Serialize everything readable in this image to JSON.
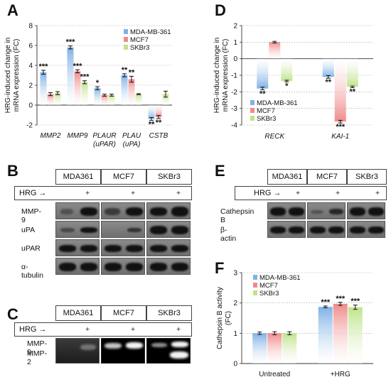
{
  "panels": {
    "A": "A",
    "B": "B",
    "C": "C",
    "D": "D",
    "E": "E",
    "F": "F"
  },
  "colors": {
    "blue": "#7fb1e6",
    "red": "#f08a8a",
    "green": "#bfe38a"
  },
  "chart_data": [
    {
      "id": "A",
      "type": "bar",
      "ylabel": "HRG-induced change in mRNA expression (FC)",
      "ylim": [
        -2,
        8
      ],
      "yticks": [
        -2,
        0,
        2,
        4,
        6,
        8
      ],
      "categories": [
        "MMP2",
        "MMP9",
        "PLAUR (uPAR)",
        "PLAU (uPA)",
        "CSTB"
      ],
      "category_lines": [
        [
          "MMP2"
        ],
        [
          "MMP9"
        ],
        [
          "PLAUR",
          "(uPAR)"
        ],
        [
          "PLAU",
          "(uPA)"
        ],
        [
          "CSTB"
        ]
      ],
      "series": [
        {
          "name": "MDA-MB-361",
          "values": [
            3.3,
            5.8,
            1.7,
            3.0,
            -1.4
          ],
          "errors": [
            0.2,
            0.15,
            0.15,
            0.15,
            0.15
          ],
          "sig": [
            "***",
            "***",
            "*",
            "**",
            "**"
          ]
        },
        {
          "name": "MCF7",
          "values": [
            1.1,
            3.4,
            1.0,
            2.6,
            -1.2
          ],
          "errors": [
            0.15,
            0.15,
            0.1,
            0.3,
            0.15
          ],
          "sig": [
            "",
            "***",
            "",
            "**",
            "**"
          ]
        },
        {
          "name": "SKBr3",
          "values": [
            1.2,
            2.3,
            1.0,
            1.1,
            1.1
          ],
          "errors": [
            0.15,
            0.15,
            0.1,
            0.05,
            0.3
          ],
          "sig": [
            "",
            "***",
            "",
            "",
            ""
          ]
        }
      ],
      "legend": "top-right",
      "grid": true
    },
    {
      "id": "D",
      "type": "bar",
      "ylabel": "HRG-induced change in mRNA expression (FC)",
      "ylim": [
        -4,
        2
      ],
      "yticks": [
        -4,
        -3,
        -2,
        -1,
        0,
        1,
        2
      ],
      "categories": [
        "RECK",
        "KAI-1"
      ],
      "category_lines": [
        [
          "RECK"
        ],
        [
          "KAI-1"
        ]
      ],
      "series": [
        {
          "name": "MDA-MB-361",
          "values": [
            -1.8,
            -1.1
          ],
          "errors": [
            0.08,
            0.08
          ],
          "sig": [
            "**",
            "**"
          ]
        },
        {
          "name": "MCF7",
          "values": [
            1.0,
            -3.8
          ],
          "errors": [
            0.05,
            0.08
          ],
          "sig": [
            "",
            "***"
          ]
        },
        {
          "name": "SKBr3",
          "values": [
            -1.35,
            -1.7
          ],
          "errors": [
            0.05,
            0.05
          ],
          "sig": [
            "*",
            "**"
          ]
        }
      ],
      "legend": "bottom-left",
      "grid": true
    },
    {
      "id": "F",
      "type": "bar",
      "ylabel": "Cathepsin B activity (FC)",
      "ylim": [
        0,
        3
      ],
      "yticks": [
        0,
        1,
        2,
        3
      ],
      "categories": [
        "Untreated",
        "+HRG"
      ],
      "category_lines": [
        [
          "Untreated"
        ],
        [
          "+HRG"
        ]
      ],
      "series": [
        {
          "name": "MDA-MB-361",
          "values": [
            1.0,
            1.87
          ],
          "errors": [
            0.04,
            0.03
          ],
          "sig": [
            "",
            "***"
          ]
        },
        {
          "name": "MCF7",
          "values": [
            1.0,
            1.97
          ],
          "errors": [
            0.05,
            0.05
          ],
          "sig": [
            "",
            "***"
          ]
        },
        {
          "name": "SKBr3",
          "values": [
            1.0,
            1.86
          ],
          "errors": [
            0.05,
            0.07
          ],
          "sig": [
            "",
            "***"
          ]
        }
      ],
      "legend": "top-left",
      "grid": true
    }
  ],
  "blots": {
    "B": {
      "lanes": [
        "MDA361",
        "MCF7",
        "SKBr3"
      ],
      "hrg_label": "HRG →",
      "plus": "+",
      "rows": [
        "MMP-9",
        "uPA",
        "uPAR",
        "α-tubulin"
      ]
    },
    "C": {
      "lanes": [
        "MDA361",
        "MCF7",
        "SKBr3"
      ],
      "hrg_label": "HRG →",
      "plus": "+",
      "rows": [
        "MMP-9",
        "MMP-2"
      ]
    },
    "E": {
      "lanes": [
        "MDA361",
        "MCF7",
        "SKBr3"
      ],
      "hrg_label": "HRG →",
      "plus": "+",
      "rows": [
        "Cathepsin B",
        "β-actin"
      ]
    }
  }
}
